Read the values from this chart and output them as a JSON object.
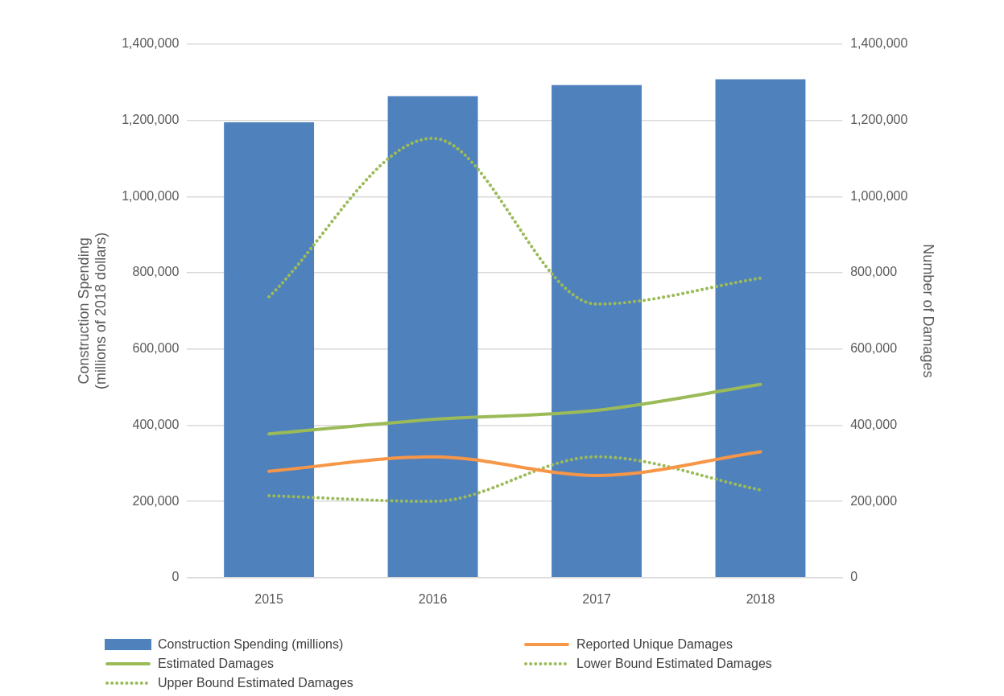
{
  "chart_data": {
    "type": "bar",
    "ylabel": "Construction Spending\n(millions of 2018 dollars)",
    "y2label": "Number of Damages",
    "categories": [
      "2015",
      "2016",
      "2017",
      "2018"
    ],
    "series": [
      {
        "name": "Construction Spending (millions)",
        "type": "bar",
        "color": "#4f81bd",
        "values": [
          1195000,
          1264000,
          1293000,
          1308000
        ]
      },
      {
        "name": "Reported Unique Damages",
        "type": "line",
        "axis": "y2",
        "color": "#f79646",
        "line_style": "solid",
        "values": [
          279000,
          317000,
          268000,
          330000
        ]
      },
      {
        "name": "Estimated Damages",
        "type": "line",
        "axis": "y2",
        "color": "#9bbb59",
        "line_style": "solid",
        "values": [
          377000,
          415000,
          439000,
          507000
        ]
      },
      {
        "name": "Lower Bound Estimated Damages",
        "type": "line",
        "axis": "y2",
        "color": "#9bbb59",
        "line_style": "dotted",
        "values": [
          215000,
          200000,
          317000,
          230000
        ]
      },
      {
        "name": "Upper Bound Estimated Damages",
        "type": "line",
        "axis": "y2",
        "color": "#9bbb59",
        "line_style": "dotted",
        "values": [
          737000,
          1153000,
          718000,
          786000
        ]
      }
    ],
    "ylim": [
      0,
      1400000
    ],
    "yticks": [
      0,
      {
        "value": 200000,
        "label": "200,000"
      },
      {
        "value": 400000,
        "label": "400,000"
      },
      {
        "value": 600000,
        "label": "600,000"
      },
      {
        "value": 800000,
        "label": "800,000"
      },
      {
        "value": 1000000,
        "label": "1,000,000"
      },
      {
        "value": 1200000,
        "label": "1,200,000"
      },
      {
        "value": 1400000,
        "label": "1,400,000"
      }
    ],
    "y2lim": [
      0,
      1400000
    ],
    "y2ticks": [
      0,
      {
        "value": 200000,
        "label": "200,000"
      },
      {
        "value": 400000,
        "label": "400,000"
      },
      {
        "value": 600000,
        "label": "600,000"
      },
      {
        "value": 800000,
        "label": "800,000"
      },
      {
        "value": 1000000,
        "label": "1,000,000"
      },
      {
        "value": 1200000,
        "label": "1,200,000"
      },
      {
        "value": 1400000,
        "label": "1,400,000"
      }
    ],
    "grid": "y",
    "legend": "bottom",
    "marker": "none"
  }
}
